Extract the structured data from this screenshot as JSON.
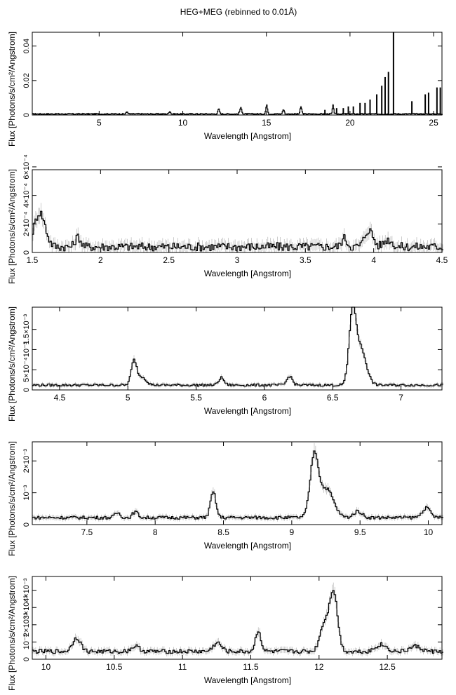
{
  "title": "HEG+MEG (rebinned to 0.01Å)",
  "chart_data": [
    {
      "type": "line",
      "step": true,
      "title": "HEG+MEG (rebinned to 0.01Å)",
      "xlabel": "Wavelength [Angstrom]",
      "ylabel": "Flux [Photons/s/cm²/Angstrom]",
      "xlim": [
        1.0,
        25.5
      ],
      "ylim": [
        0,
        0.048
      ],
      "xticks": [
        5,
        10,
        15,
        20,
        25
      ],
      "xtick_labels": [
        "5",
        "10",
        "15",
        "20",
        "25"
      ],
      "yticks": [
        0,
        0.02,
        0.04
      ],
      "ytick_labels": [
        "0",
        "0.02",
        "0.04"
      ],
      "baseline": 0.0006,
      "noise": 0.0003,
      "features": [
        {
          "x": 6.65,
          "h": 0.0012,
          "w": 0.05
        },
        {
          "x": 9.2,
          "h": 0.0015,
          "w": 0.05
        },
        {
          "x": 12.13,
          "h": 0.0028,
          "w": 0.05
        },
        {
          "x": 13.45,
          "h": 0.0035,
          "w": 0.06
        },
        {
          "x": 15.0,
          "h": 0.005,
          "w": 0.05
        },
        {
          "x": 16.0,
          "h": 0.0025,
          "w": 0.05
        },
        {
          "x": 17.05,
          "h": 0.004,
          "w": 0.05
        },
        {
          "x": 18.97,
          "h": 0.005,
          "w": 0.04
        }
      ],
      "spikes": [
        {
          "x": 18.5,
          "h": 0.003
        },
        {
          "x": 19.2,
          "h": 0.004
        },
        {
          "x": 19.6,
          "h": 0.004
        },
        {
          "x": 19.9,
          "h": 0.005
        },
        {
          "x": 20.2,
          "h": 0.005
        },
        {
          "x": 20.6,
          "h": 0.007
        },
        {
          "x": 20.9,
          "h": 0.007
        },
        {
          "x": 21.2,
          "h": 0.009
        },
        {
          "x": 21.6,
          "h": 0.012
        },
        {
          "x": 21.9,
          "h": 0.017
        },
        {
          "x": 22.1,
          "h": 0.022
        },
        {
          "x": 22.3,
          "h": 0.025
        },
        {
          "x": 22.6,
          "h": 0.048
        },
        {
          "x": 23.7,
          "h": 0.008
        },
        {
          "x": 24.5,
          "h": 0.012
        },
        {
          "x": 24.7,
          "h": 0.013
        },
        {
          "x": 25.2,
          "h": 0.016
        },
        {
          "x": 25.4,
          "h": 0.016
        }
      ]
    },
    {
      "type": "line",
      "step": true,
      "xlabel": "Wavelength [Angstrom]",
      "ylabel": "Flux [Photons/s/cm²/Angstrom]",
      "xlim": [
        1.5,
        4.5
      ],
      "ylim": [
        0,
        0.00058
      ],
      "xticks": [
        1.5,
        2,
        2.5,
        3,
        3.5,
        4,
        4.5
      ],
      "xtick_labels": [
        "1.5",
        "2",
        "2.5",
        "3",
        "3.5",
        "4",
        "4.5"
      ],
      "yticks": [
        0,
        0.0002,
        0.0004,
        0.0006
      ],
      "ytick_labels": [
        "0",
        "2×10⁻⁴",
        "4×10⁻⁴",
        "6×10⁻⁴"
      ],
      "baseline": 4e-05,
      "noise": 3e-05,
      "features": [
        {
          "x": 1.55,
          "h": 0.00024,
          "w": 0.04
        },
        {
          "x": 1.83,
          "h": 7e-05,
          "w": 0.02
        },
        {
          "x": 3.78,
          "h": 6e-05,
          "w": 0.02
        },
        {
          "x": 3.96,
          "h": 0.00012,
          "w": 0.03
        },
        {
          "x": 4.1,
          "h": 5e-05,
          "w": 0.03
        }
      ],
      "spikes": []
    },
    {
      "type": "line",
      "step": true,
      "xlabel": "Wavelength [Angstrom]",
      "ylabel": "Flux [Photons/s/cm²/Angstrom]",
      "xlim": [
        4.3,
        7.3
      ],
      "ylim": [
        0,
        0.00205
      ],
      "xticks": [
        4.5,
        5,
        5.5,
        6,
        6.5,
        7
      ],
      "xtick_labels": [
        "4.5",
        "5",
        "5.5",
        "6",
        "6.5",
        "7"
      ],
      "yticks": [
        0,
        0.0005,
        0.001,
        0.0015
      ],
      "ytick_labels": [
        "0",
        "5×10⁻⁴",
        "10⁻³",
        "1.5×10⁻³"
      ],
      "baseline": 0.00012,
      "noise": 3e-05,
      "features": [
        {
          "x": 5.04,
          "h": 0.0006,
          "w": 0.02
        },
        {
          "x": 5.1,
          "h": 0.0002,
          "w": 0.03
        },
        {
          "x": 5.68,
          "h": 0.00018,
          "w": 0.02
        },
        {
          "x": 6.18,
          "h": 0.00022,
          "w": 0.02
        },
        {
          "x": 6.64,
          "h": 0.0017,
          "w": 0.025
        },
        {
          "x": 6.7,
          "h": 0.0009,
          "w": 0.04
        }
      ],
      "spikes": []
    },
    {
      "type": "line",
      "step": true,
      "xlabel": "Wavelength [Angstrom]",
      "ylabel": "Flux [Photons/s/cm²/Angstrom]",
      "xlim": [
        7.1,
        10.1
      ],
      "ylim": [
        0,
        0.0026
      ],
      "xticks": [
        7.5,
        8,
        8.5,
        9,
        9.5,
        10
      ],
      "xtick_labels": [
        "7.5",
        "8",
        "8.5",
        "9",
        "9.5",
        "10"
      ],
      "yticks": [
        0,
        0.001,
        0.002
      ],
      "ytick_labels": [
        "0",
        "10⁻³",
        "2×10⁻³"
      ],
      "baseline": 0.00022,
      "noise": 5e-05,
      "features": [
        {
          "x": 7.72,
          "h": 0.00015,
          "w": 0.02
        },
        {
          "x": 7.85,
          "h": 0.00018,
          "w": 0.02
        },
        {
          "x": 8.42,
          "h": 0.0008,
          "w": 0.02
        },
        {
          "x": 9.16,
          "h": 0.0019,
          "w": 0.03
        },
        {
          "x": 9.25,
          "h": 0.0009,
          "w": 0.05
        },
        {
          "x": 9.48,
          "h": 0.0002,
          "w": 0.03
        },
        {
          "x": 9.98,
          "h": 0.0003,
          "w": 0.03
        }
      ],
      "spikes": []
    },
    {
      "type": "line",
      "step": true,
      "xlabel": "Wavelength [Angstrom]",
      "ylabel": "Flux [Photons/s/cm²/Angstrom]",
      "xlim": [
        9.9,
        12.9
      ],
      "ylim": [
        0,
        0.0048
      ],
      "xticks": [
        10,
        10.5,
        11,
        11.5,
        12,
        12.5
      ],
      "xtick_labels": [
        "10",
        "10.5",
        "11",
        "11.5",
        "12",
        "12.5"
      ],
      "yticks": [
        0,
        0.001,
        0.002,
        0.003,
        0.004
      ],
      "ytick_labels": [
        "0",
        "10⁻³",
        "2×10⁻³",
        "3×10⁻³",
        "4×10⁻³"
      ],
      "baseline": 0.00045,
      "noise": 0.00012,
      "features": [
        {
          "x": 10.22,
          "h": 0.0008,
          "w": 0.03
        },
        {
          "x": 10.65,
          "h": 0.0003,
          "w": 0.03
        },
        {
          "x": 11.25,
          "h": 0.0005,
          "w": 0.03
        },
        {
          "x": 11.55,
          "h": 0.0012,
          "w": 0.02
        },
        {
          "x": 12.1,
          "h": 0.0035,
          "w": 0.03
        },
        {
          "x": 12.03,
          "h": 0.0015,
          "w": 0.03
        },
        {
          "x": 12.45,
          "h": 0.0004,
          "w": 0.04
        },
        {
          "x": 12.7,
          "h": 0.0003,
          "w": 0.04
        }
      ],
      "spikes": []
    }
  ]
}
